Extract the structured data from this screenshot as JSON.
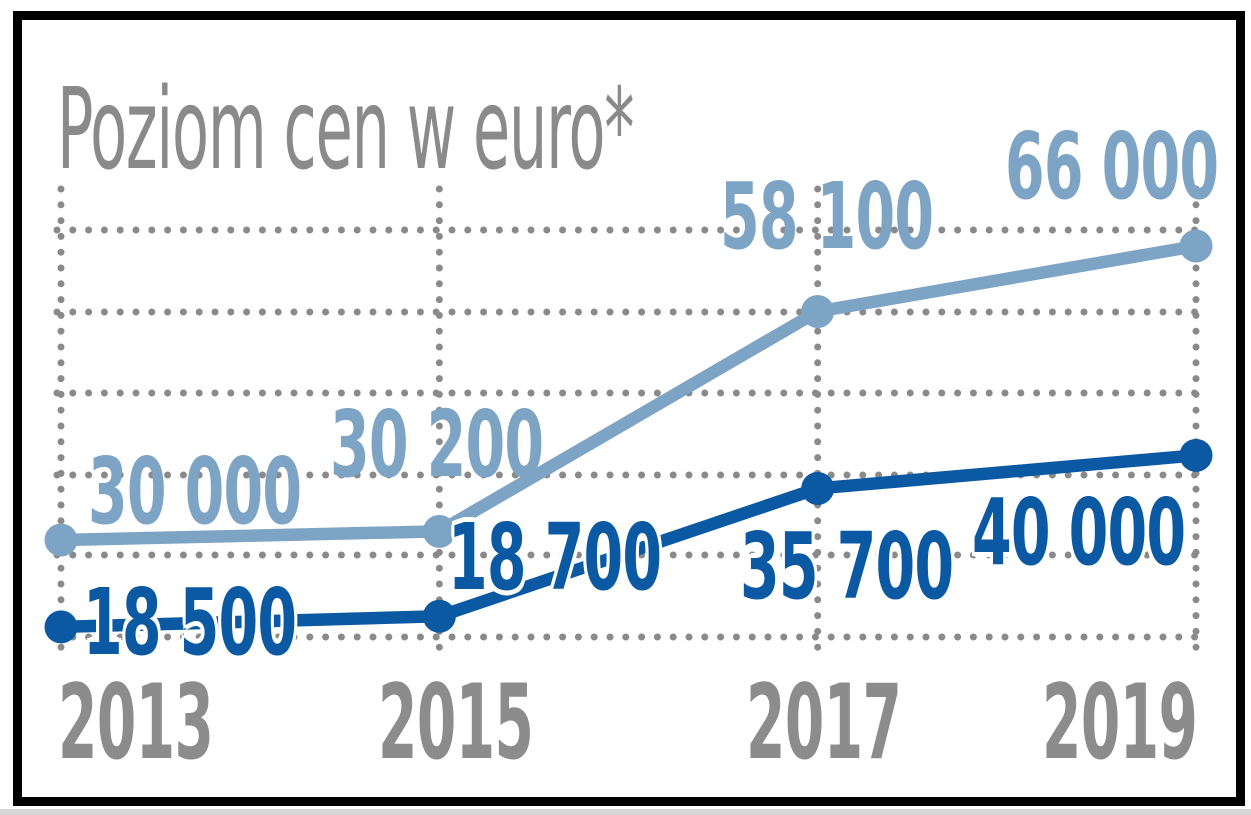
{
  "title": "Poziom cen w euro*",
  "colors": {
    "series_light": "#7da4c5",
    "series_dark": "#0b59a3",
    "grid_dots": "#8a8a8a",
    "title_gray": "#8a8a8a",
    "tick_gray": "#8c8c8c",
    "frame": "#000000",
    "background": "#ffffff"
  },
  "chart_data": {
    "type": "line",
    "title": "Poziom cen w euro*",
    "x": [
      2013,
      2015,
      2017,
      2019
    ],
    "x_tick_labels": [
      "2013",
      "2015",
      "2017",
      "2019"
    ],
    "y_axis_labels_visible": false,
    "legend_position": "none",
    "grid": {
      "style": "dotted",
      "color": "#8a8a8a",
      "horizontal_lines": 6,
      "vertical_lines": 4
    },
    "series": [
      {
        "name": "upper-series-light-blue",
        "color": "#7da4c5",
        "values": [
          30000,
          30200,
          58100,
          66000
        ],
        "point_labels": [
          "30 000",
          "30 200",
          "58 100",
          "66 000"
        ]
      },
      {
        "name": "lower-series-dark-blue",
        "color": "#0b59a3",
        "values": [
          18500,
          18700,
          35700,
          40000
        ],
        "point_labels": [
          "18 500",
          "18 700",
          "35 700",
          "40 000"
        ]
      }
    ]
  }
}
